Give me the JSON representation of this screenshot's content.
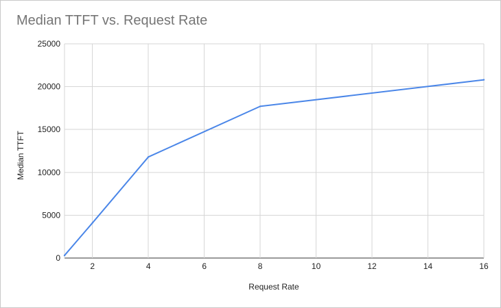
{
  "chart_data": {
    "type": "line",
    "title": "Median TTFT vs. Request Rate",
    "xlabel": "Request Rate",
    "ylabel": "Median TTFT",
    "xlim": [
      1,
      16
    ],
    "ylim": [
      0,
      25000
    ],
    "x_ticks": [
      2,
      4,
      6,
      8,
      10,
      12,
      14,
      16
    ],
    "y_ticks": [
      0,
      5000,
      10000,
      15000,
      20000,
      25000
    ],
    "grid": true,
    "legend": "none",
    "color": "#4a86e8",
    "series": [
      {
        "x": [
          1,
          2,
          4,
          8,
          16
        ],
        "values": [
          300,
          4100,
          11800,
          17700,
          20800
        ]
      }
    ]
  }
}
